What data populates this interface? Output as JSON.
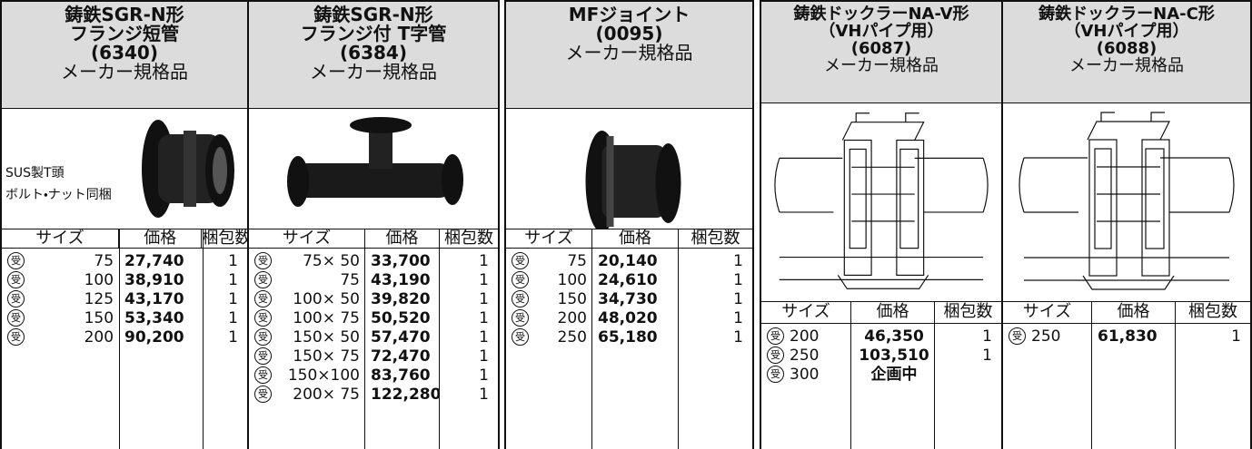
{
  "products": [
    {
      "title": [
        "鋳鉄SGR-N形",
        "フランジ短管",
        "(6340)"
      ],
      "subtitle": "メーカー規格品",
      "note": [
        "SUS製T頭",
        "ボルト・ナット同梱"
      ],
      "columns": [
        "サイズ",
        "価格",
        "梱包数"
      ],
      "rows": [
        {
          "mark": "受",
          "size": "75",
          "price": "27,740",
          "pack": "1"
        },
        {
          "mark": "受",
          "size": "100",
          "price": "38,910",
          "pack": "1"
        },
        {
          "mark": "受",
          "size": "125",
          "price": "43,170",
          "pack": "1"
        },
        {
          "mark": "受",
          "size": "150",
          "price": "53,340",
          "pack": "1"
        },
        {
          "mark": "受",
          "size": "200",
          "price": "90,200",
          "pack": "1"
        }
      ]
    },
    {
      "title": [
        "鋳鉄SGR-N形",
        "フランジ付 T字管",
        "(6384)"
      ],
      "subtitle": "メーカー規格品",
      "columns": [
        "サイズ",
        "価格",
        "梱包数"
      ],
      "rows": [
        {
          "mark": "受",
          "size": "75× 50",
          "price": "33,700",
          "pack": "1"
        },
        {
          "mark": "受",
          "size": "75",
          "price": "43,190",
          "pack": "1"
        },
        {
          "mark": "受",
          "size": "100× 50",
          "price": "39,820",
          "pack": "1"
        },
        {
          "mark": "受",
          "size": "100× 75",
          "price": "50,520",
          "pack": "1"
        },
        {
          "mark": "受",
          "size": "150× 50",
          "price": "57,470",
          "pack": "1"
        },
        {
          "mark": "受",
          "size": "150× 75",
          "price": "72,470",
          "pack": "1"
        },
        {
          "mark": "受",
          "size": "150×100",
          "price": "83,760",
          "pack": "1"
        },
        {
          "mark": "受",
          "size": "200× 75",
          "price": "122,280",
          "pack": "1"
        }
      ]
    },
    {
      "title": [
        "MFジョイント",
        "(0095)"
      ],
      "subtitle": "メーカー規格品",
      "columns": [
        "サイズ",
        "価格",
        "梱包数"
      ],
      "rows": [
        {
          "mark": "受",
          "size": "75",
          "price": "20,140",
          "pack": "1"
        },
        {
          "mark": "受",
          "size": "100",
          "price": "24,610",
          "pack": "1"
        },
        {
          "mark": "受",
          "size": "150",
          "price": "34,730",
          "pack": "1"
        },
        {
          "mark": "受",
          "size": "200",
          "price": "48,020",
          "pack": "1"
        },
        {
          "mark": "受",
          "size": "250",
          "price": "65,180",
          "pack": "1"
        }
      ]
    },
    {
      "title": [
        "鋳鉄ドックラーNA-V形",
        "（VHパイプ用）",
        "(6087)"
      ],
      "subtitle": "メーカー規格品",
      "columns": [
        "サイズ",
        "価格",
        "梱包数"
      ],
      "rows": [
        {
          "mark": "受",
          "size": "200",
          "price": "46,350",
          "pack": "1"
        },
        {
          "mark": "受",
          "size": "250",
          "price": "103,510",
          "pack": "1"
        },
        {
          "mark": "受",
          "size": "300",
          "price": "企画中"
        }
      ]
    },
    {
      "title": [
        "鋳鉄ドックラーNA-C形",
        "（VHパイプ用）",
        "(6088)"
      ],
      "subtitle": "メーカー規格品",
      "columns": [
        "サイズ",
        "価格",
        "梱包数"
      ],
      "rows": [
        {
          "mark": "受",
          "size": "250",
          "price": "61,830",
          "pack": "1"
        }
      ]
    }
  ]
}
